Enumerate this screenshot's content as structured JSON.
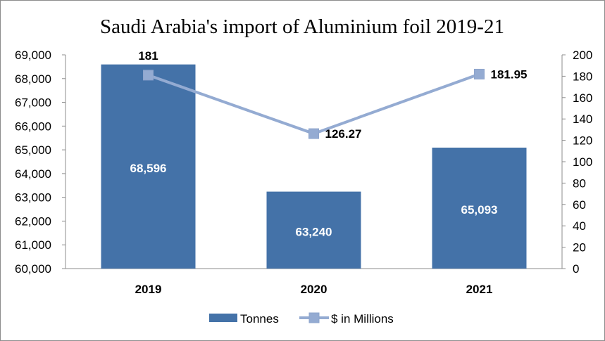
{
  "chart_data": {
    "type": "bar",
    "title": "Saudi Arabia's import of Aluminium foil 2019-21",
    "categories": [
      "2019",
      "2020",
      "2021"
    ],
    "series": [
      {
        "name": "Tonnes",
        "type": "bar",
        "axis": "left",
        "values": [
          68596,
          63240,
          65093
        ],
        "data_labels": [
          "68,596",
          "63,240",
          "65,093"
        ],
        "color": "#4472a8"
      },
      {
        "name": "$ in Millions",
        "type": "line",
        "axis": "right",
        "values": [
          181,
          126.27,
          181.95
        ],
        "data_labels": [
          "181",
          "126.27",
          "181.95"
        ],
        "color": "#94abd2"
      }
    ],
    "y_left": {
      "min": 60000,
      "max": 69000,
      "ticks": [
        "60,000",
        "61,000",
        "62,000",
        "63,000",
        "64,000",
        "65,000",
        "66,000",
        "67,000",
        "68,000",
        "69,000"
      ]
    },
    "y_right": {
      "min": 0,
      "max": 200,
      "ticks": [
        "0",
        "20",
        "40",
        "60",
        "80",
        "100",
        "120",
        "140",
        "160",
        "180",
        "200"
      ]
    },
    "grid": false,
    "legend_position": "bottom"
  }
}
